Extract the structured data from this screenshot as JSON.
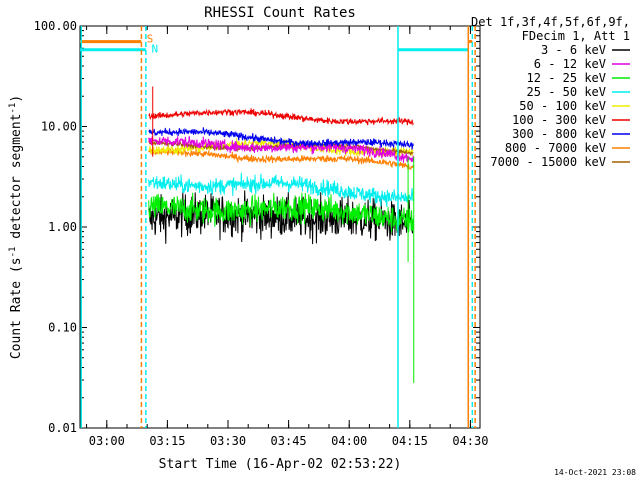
{
  "chart_data": {
    "type": "line",
    "title": "RHESSI Count Rates",
    "xlabel": "Start Time (16-Apr-02 02:53:22)",
    "ylabel_main": "Count Rate (s",
    "ylabel_sup1": "-1",
    "ylabel_mid": " detector segment",
    "ylabel_sup2": "-1",
    "ylabel_end": ")",
    "y_scale": "log",
    "ylim": [
      0.01,
      100
    ],
    "xlim_minutes": [
      0,
      99
    ],
    "x_ticks": [
      {
        "minute": 6.63,
        "label": "03:00"
      },
      {
        "minute": 21.63,
        "label": "03:15"
      },
      {
        "minute": 36.63,
        "label": "03:30"
      },
      {
        "minute": 51.63,
        "label": "03:45"
      },
      {
        "minute": 66.63,
        "label": "04:00"
      },
      {
        "minute": 81.63,
        "label": "04:15"
      },
      {
        "minute": 96.63,
        "label": "04:30"
      }
    ],
    "y_ticks": [
      {
        "value": 100,
        "label": "100.00"
      },
      {
        "value": 10,
        "label": "10.00"
      },
      {
        "value": 1,
        "label": "1.00"
      },
      {
        "value": 0.1,
        "label": "0.10"
      },
      {
        "value": 0.01,
        "label": "0.01"
      }
    ],
    "legend_header": [
      "Det 1f,3f,4f,5f,6f,9f,",
      "FDecim 1, Att 1"
    ],
    "legend_placement": "right",
    "data_window_minutes": [
      17.0,
      82.5
    ],
    "series": [
      {
        "name": "3 - 6 keV",
        "color": "#000000",
        "start": 1.2,
        "mid": 1.35,
        "end": 1.0,
        "noise": 0.45
      },
      {
        "name": "6 - 12 keV",
        "color": "#e000e0",
        "start": 6.8,
        "mid": 6.5,
        "end": 5.0,
        "noise": 0.12
      },
      {
        "name": "12 - 25 keV",
        "color": "#00ee00",
        "start": 1.5,
        "mid": 1.55,
        "end": 1.2,
        "noise": 0.3
      },
      {
        "name": "25 - 50 keV",
        "color": "#00eeee",
        "start": 2.8,
        "mid": 2.6,
        "end": 2.0,
        "noise": 0.18
      },
      {
        "name": "50 - 100 keV",
        "color": "#eeee00",
        "start": 6.2,
        "mid": 6.5,
        "end": 5.5,
        "noise": 0.1
      },
      {
        "name": "100 - 300 keV",
        "color": "#ee0000",
        "start": 13.5,
        "mid": 13.0,
        "end": 10.5,
        "noise": 0.07
      },
      {
        "name": "300 - 800 keV",
        "color": "#0000ee",
        "start": 8.8,
        "mid": 7.5,
        "end": 6.2,
        "noise": 0.08
      },
      {
        "name": "800 - 7000 keV",
        "color": "#ff8000",
        "start": 5.3,
        "mid": 5.0,
        "end": 4.0,
        "noise": 0.08
      },
      {
        "name": "7000 - 15000 keV",
        "color": "#a06000",
        "start": 6.5,
        "mid": 6.4,
        "end": 5.8,
        "noise": 0.05
      }
    ],
    "spikes": [
      {
        "minute": 18.0,
        "value": 25,
        "color": "#ee0000"
      },
      {
        "minute": 82.6,
        "value": 0.028,
        "color": "#00ee00"
      },
      {
        "minute": 81.2,
        "value": 0.45,
        "color": "#00ee00"
      }
    ],
    "attenuator_lines": [
      {
        "minute": 0.3,
        "color": "#00eeee",
        "style": "solid"
      },
      {
        "minute": 15.2,
        "color": "#ff8000",
        "style": "dashed"
      },
      {
        "minute": 16.3,
        "color": "#00eeee",
        "style": "dashed"
      },
      {
        "minute": 78.7,
        "color": "#00eeee",
        "style": "solid"
      },
      {
        "minute": 96.1,
        "color": "#ff8000",
        "style": "solid"
      },
      {
        "minute": 97.1,
        "color": "#00eeee",
        "style": "dashed"
      },
      {
        "minute": 97.8,
        "color": "#ff8000",
        "style": "dashed"
      }
    ],
    "state_bars": [
      {
        "from": 0,
        "to": 15.2,
        "value": 70,
        "color": "#ff8000"
      },
      {
        "from": 0,
        "to": 16.3,
        "value": 58,
        "color": "#00eeee"
      },
      {
        "from": 78.7,
        "to": 96.1,
        "value": 58,
        "color": "#00eeee"
      },
      {
        "from": 96.1,
        "to": 97.1,
        "value": 70,
        "color": "#ff8000"
      }
    ],
    "markers": [
      {
        "text": "S",
        "color": "#ff8000",
        "minute": 16.5,
        "value": 75
      },
      {
        "text": "N",
        "color": "#00eeee",
        "minute": 17.7,
        "value": 60
      }
    ],
    "footer_timestamp": "14-Oct-2021 23:08"
  }
}
